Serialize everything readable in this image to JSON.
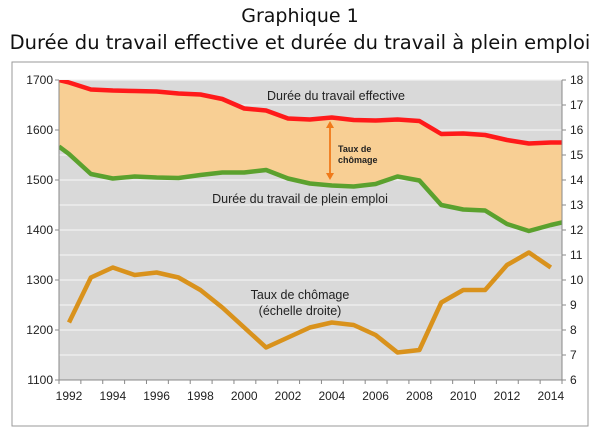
{
  "title": "Graphique 1",
  "subtitle": "Durée du travail effective et durée du travail à plein emploi",
  "chart_data": {
    "type": "line",
    "x": [
      1992,
      1993,
      1994,
      1995,
      1996,
      1997,
      1998,
      1999,
      2000,
      2001,
      2002,
      2003,
      2004,
      2005,
      2006,
      2007,
      2008,
      2009,
      2010,
      2011,
      2012,
      2013,
      2014
    ],
    "x_tick_labels": [
      "1992",
      "1994",
      "1996",
      "1998",
      "2000",
      "2002",
      "2004",
      "2006",
      "2008",
      "2010",
      "2012",
      "2014"
    ],
    "left_axis": {
      "ylim": [
        1100,
        1700
      ],
      "ticks": [
        "1100",
        "1200",
        "1300",
        "1400",
        "1500",
        "1600",
        "1700"
      ]
    },
    "right_axis": {
      "ylim": [
        6,
        18
      ],
      "ticks": [
        "6",
        "7",
        "8",
        "9",
        "10",
        "11",
        "12",
        "13",
        "14",
        "15",
        "16",
        "17",
        "18"
      ]
    },
    "grid": true,
    "series": [
      {
        "name": "Durée du travail effective",
        "axis": "left",
        "color": "#ff1a1a",
        "values": [
          1695,
          1681,
          1679,
          1678,
          1677,
          1673,
          1671,
          1662,
          1643,
          1639,
          1623,
          1621,
          1625,
          1620,
          1619,
          1621,
          1618,
          1592,
          1593,
          1590,
          1580,
          1573,
          1575
        ]
      },
      {
        "name": "Durée du travail de plein emploi",
        "axis": "left",
        "color": "#5ba12e",
        "values": [
          1552,
          1512,
          1503,
          1507,
          1505,
          1504,
          1510,
          1515,
          1515,
          1520,
          1503,
          1493,
          1489,
          1487,
          1492,
          1507,
          1499,
          1450,
          1441,
          1439,
          1412,
          1398,
          1410
        ]
      },
      {
        "name": "Taux de chômage (échelle droite)",
        "axis": "right",
        "color": "#d9921c",
        "values": [
          8.3,
          10.1,
          10.5,
          10.2,
          10.3,
          10.1,
          9.6,
          8.9,
          8.1,
          7.3,
          7.7,
          8.1,
          8.3,
          8.2,
          7.8,
          7.1,
          7.2,
          9.1,
          9.6,
          9.6,
          10.6,
          11.1,
          10.5
        ]
      }
    ],
    "annotations": {
      "effective": "Durée du travail effective",
      "plein_emploi": "Durée du travail de plein emploi",
      "gap_line1": "Taux de",
      "gap_line2": "chômage",
      "unemp_line1": "Taux de chômage",
      "unemp_line2": "(échelle droite)"
    },
    "colors": {
      "plot_bg": "#d9d9d9",
      "gap_fill": "#f8cf94",
      "arrow": "#f07a1a",
      "grid": "#f2f2f2"
    }
  }
}
